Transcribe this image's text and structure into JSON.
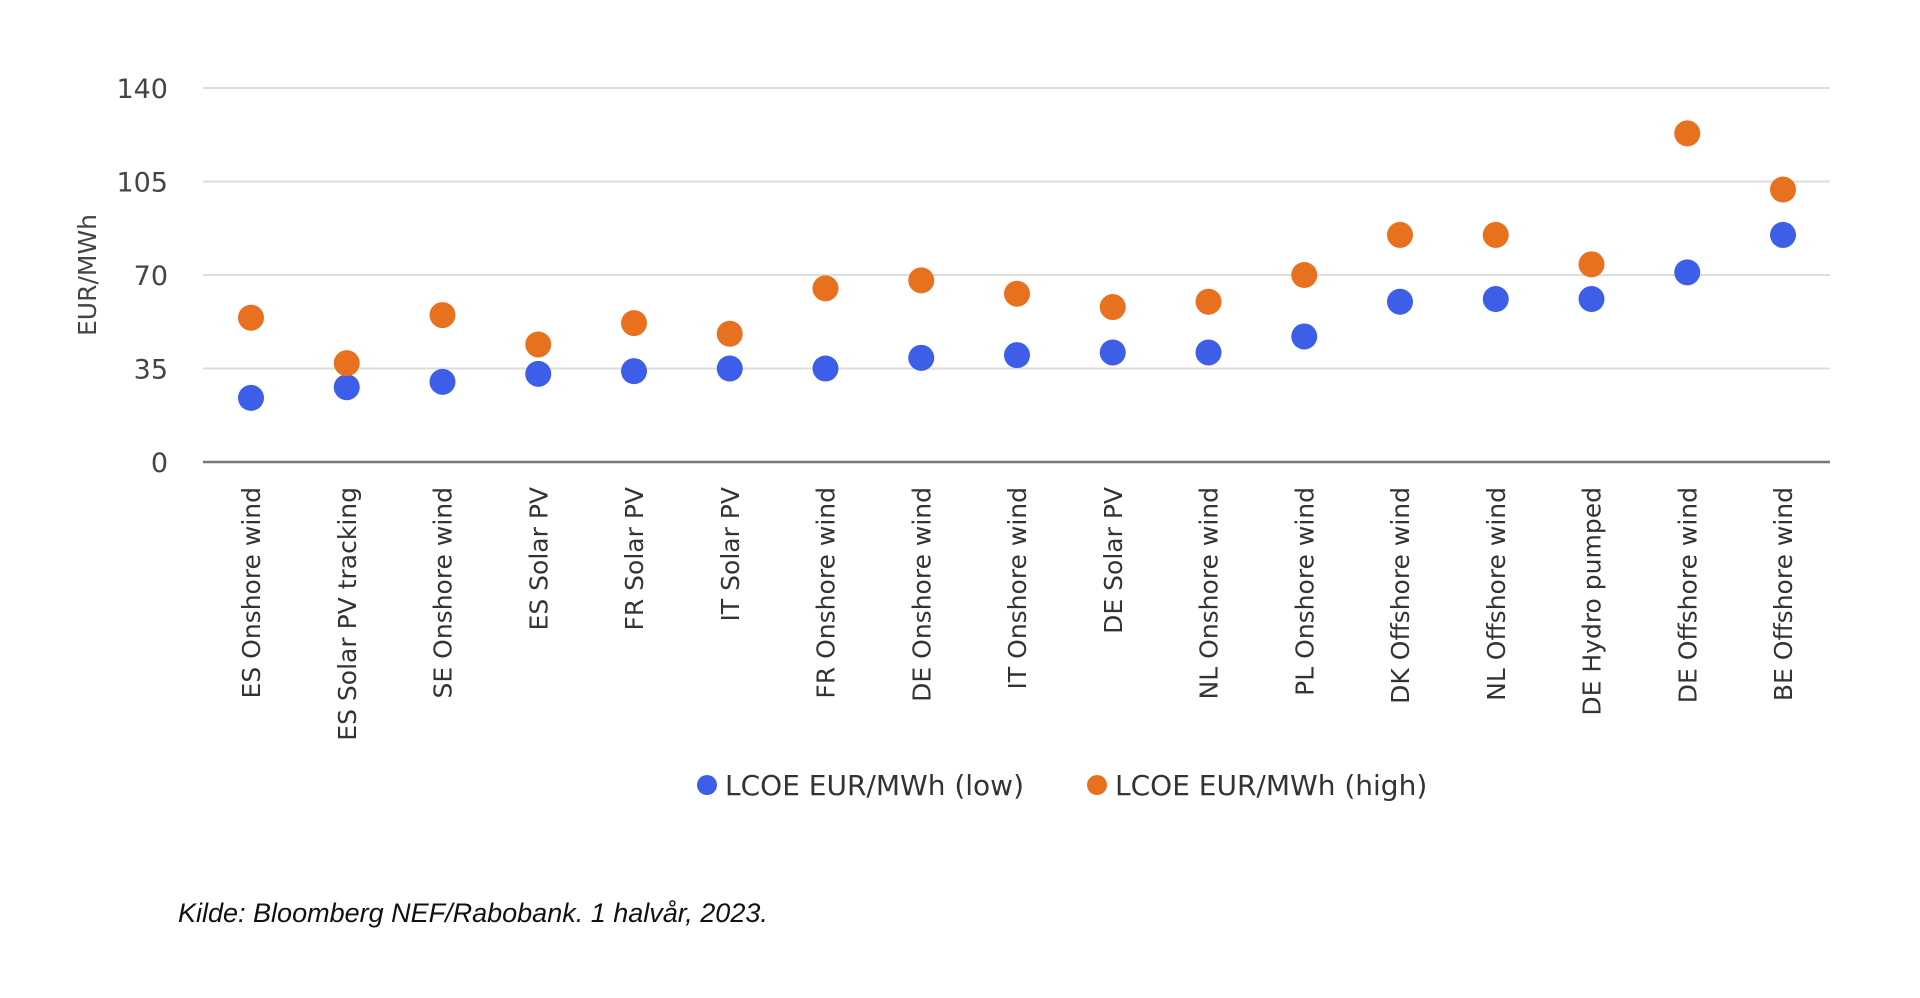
{
  "chart_data": {
    "type": "scatter",
    "ylabel": "EUR/MWh",
    "ylim": [
      0,
      140
    ],
    "yticks": [
      0,
      35,
      70,
      105,
      140
    ],
    "grid": true,
    "legend_position": "bottom",
    "categories": [
      "ES Onshore wind",
      "ES Solar PV tracking",
      "SE Onshore wind",
      "ES Solar PV",
      "FR Solar PV",
      "IT Solar PV",
      "FR Onshore wind",
      "DE Onshore wind",
      "IT Onshore wind",
      "DE Solar PV",
      "NL Onshore wind",
      "PL Onshore wind",
      "DK Offshore wind",
      "NL Offshore wind",
      "DE Hydro pumped",
      "DE Offshore wind",
      "BE Offshore wind"
    ],
    "series": [
      {
        "name": "LCOE EUR/MWh (low)",
        "color": "#3c5ee8",
        "values": [
          24,
          28,
          30,
          33,
          34,
          35,
          35,
          39,
          40,
          41,
          41,
          47,
          60,
          61,
          61,
          71,
          85
        ]
      },
      {
        "name": "LCOE EUR/MWh (high)",
        "color": "#e8711f",
        "values": [
          54,
          37,
          55,
          44,
          52,
          48,
          65,
          68,
          63,
          58,
          60,
          70,
          85,
          85,
          74,
          123,
          102
        ]
      }
    ]
  },
  "source": "Kilde: Bloomberg NEF/Rabobank. 1 halvår, 2023."
}
